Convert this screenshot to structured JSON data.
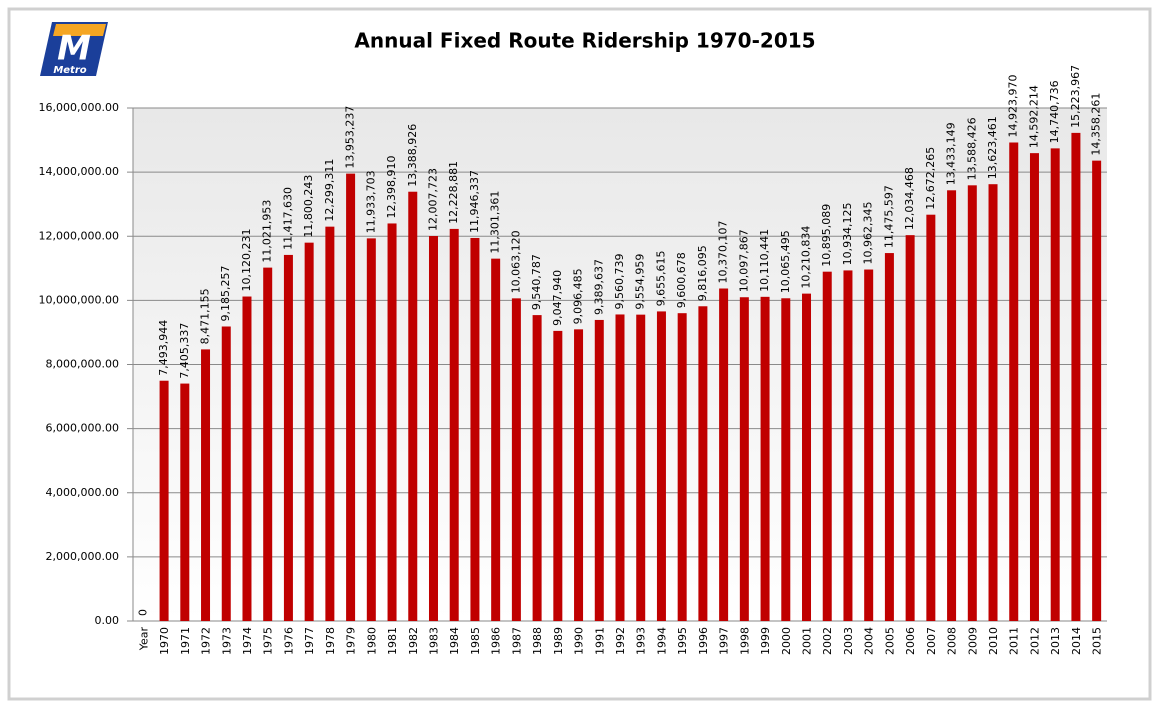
{
  "logo": {
    "letter": "M",
    "text": "Metro"
  },
  "chart_data": {
    "type": "bar",
    "title": "Annual Fixed Route Ridership 1970-2015",
    "categories": [
      "Year",
      "1970",
      "1971",
      "1972",
      "1973",
      "1974",
      "1975",
      "1976",
      "1977",
      "1978",
      "1979",
      "1980",
      "1981",
      "1982",
      "1983",
      "1984",
      "1985",
      "1986",
      "1987",
      "1988",
      "1989",
      "1990",
      "1991",
      "1992",
      "1993",
      "1994",
      "1995",
      "1996",
      "1997",
      "1998",
      "1999",
      "2000",
      "2001",
      "2002",
      "2003",
      "2004",
      "2005",
      "2006",
      "2007",
      "2008",
      "2009",
      "2010",
      "2011",
      "2012",
      "2013",
      "2014",
      "2015"
    ],
    "values": [
      0,
      7493944,
      7405337,
      8471155,
      9185257,
      10120231,
      11021953,
      11417630,
      11800243,
      12299311,
      13953237,
      11933703,
      12398910,
      13388926,
      12007723,
      12228881,
      11946337,
      11301361,
      10063120,
      9540787,
      9047940,
      9096485,
      9389637,
      9560739,
      9554959,
      9655615,
      9600678,
      9816095,
      10370107,
      10097867,
      10110441,
      10065495,
      10210834,
      10895089,
      10934125,
      10962345,
      11475597,
      12034468,
      12672265,
      13433149,
      13588426,
      13623461,
      14923970,
      14592214,
      14740736,
      15223967,
      14358261
    ],
    "value_labels": [
      "0",
      "7,493,944",
      "7,405,337",
      "8,471,155",
      "9,185,257",
      "10,120,231",
      "11,021,953",
      "11,417,630",
      "11,800,243",
      "12,299,311",
      "13,953,237",
      "11,933,703",
      "12,398,910",
      "13,388,926",
      "12,007,723",
      "12,228,881",
      "11,946,337",
      "11,301,361",
      "10,063,120",
      "9,540,787",
      "9,047,940",
      "9,096,485",
      "9,389,637",
      "9,560,739",
      "9,554,959",
      "9,655,615",
      "9,600,678",
      "9,816,095",
      "10,370,107",
      "10,097,867",
      "10,110,441",
      "10,065,495",
      "10,210,834",
      "10,895,089",
      "10,934,125",
      "10,962,345",
      "11,475,597",
      "12,034,468",
      "12,672,265",
      "13,433,149",
      "13,588,426",
      "13,623,461",
      "14,923,970",
      "14,592,214",
      "14,740,736",
      "15,223,967",
      "14,358,261"
    ],
    "color": "#c00000",
    "ylim": [
      0,
      16000000
    ],
    "yticks": [
      {
        "value": 0,
        "label": "0.00"
      },
      {
        "value": 2000000,
        "label": "2,000,000.00"
      },
      {
        "value": 4000000,
        "label": "4,000,000.00"
      },
      {
        "value": 6000000,
        "label": "6,000,000.00"
      },
      {
        "value": 8000000,
        "label": "8,000,000.00"
      },
      {
        "value": 10000000,
        "label": "10,000,000.00"
      },
      {
        "value": 12000000,
        "label": "12,000,000.00"
      },
      {
        "value": 14000000,
        "label": "14,000,000.00"
      },
      {
        "value": 16000000,
        "label": "16,000,000.00"
      }
    ],
    "grid": true
  }
}
